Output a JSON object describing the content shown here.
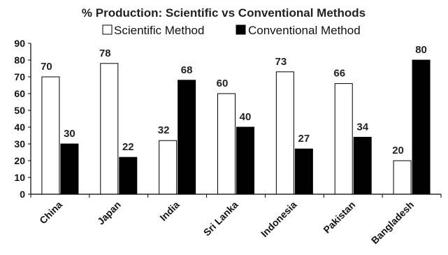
{
  "chart_data": {
    "type": "bar",
    "title": "% Production: Scientific vs Conventional Methods",
    "xlabel": "",
    "ylabel": "",
    "ylim": [
      0,
      90
    ],
    "yticks": [
      0,
      10,
      20,
      30,
      40,
      50,
      60,
      70,
      80,
      90
    ],
    "grid": false,
    "legend_position": "top",
    "categories": [
      "China",
      "Japan",
      "India",
      "Sri Lanka",
      "Indonesia",
      "Pakistan",
      "Bangladesh"
    ],
    "series": [
      {
        "name": "Scientific Method",
        "values": [
          70,
          78,
          32,
          60,
          73,
          66,
          20
        ],
        "color": "#ffffff"
      },
      {
        "name": "Conventional Method",
        "values": [
          30,
          22,
          68,
          40,
          27,
          34,
          80
        ],
        "color": "#000000"
      }
    ]
  }
}
